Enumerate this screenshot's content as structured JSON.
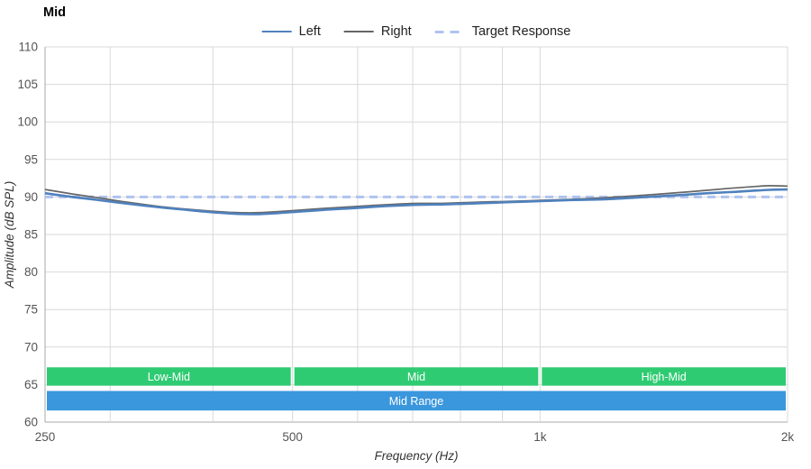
{
  "chart_data": {
    "type": "line",
    "title": "Mid",
    "xlabel": "Frequency (Hz)",
    "ylabel": "Amplitude (dB SPL)",
    "x_scale": "log",
    "xlim": [
      250,
      2000
    ],
    "ylim": [
      60,
      110
    ],
    "x_ticks": [
      {
        "value": 250,
        "label": "250"
      },
      {
        "value": 500,
        "label": "500"
      },
      {
        "value": 1000,
        "label": "1k"
      },
      {
        "value": 2000,
        "label": "2k"
      }
    ],
    "x_gridlines_minor": [
      300,
      400,
      500,
      600,
      700,
      800,
      900,
      1000
    ],
    "y_ticks": [
      {
        "value": 110,
        "label": "110"
      },
      {
        "value": 105,
        "label": "105"
      },
      {
        "value": 100,
        "label": "100"
      },
      {
        "value": 95,
        "label": "95"
      },
      {
        "value": 90,
        "label": "90"
      },
      {
        "value": 85,
        "label": "85"
      },
      {
        "value": 80,
        "label": "80"
      },
      {
        "value": 75,
        "label": "75"
      },
      {
        "value": 70,
        "label": "70"
      },
      {
        "value": 65,
        "label": "65"
      },
      {
        "value": 60,
        "label": "60"
      }
    ],
    "series": [
      {
        "name": "Left",
        "color": "#4f81bd",
        "width": 2.6,
        "dash": null,
        "points": [
          [
            250,
            90.5
          ],
          [
            270,
            90.0
          ],
          [
            290,
            89.6
          ],
          [
            310,
            89.2
          ],
          [
            330,
            88.85
          ],
          [
            350,
            88.55
          ],
          [
            370,
            88.3
          ],
          [
            395,
            88.0
          ],
          [
            420,
            87.8
          ],
          [
            450,
            87.7
          ],
          [
            480,
            87.85
          ],
          [
            510,
            88.05
          ],
          [
            550,
            88.3
          ],
          [
            590,
            88.5
          ],
          [
            630,
            88.7
          ],
          [
            670,
            88.85
          ],
          [
            710,
            88.95
          ],
          [
            760,
            89.0
          ],
          [
            810,
            89.1
          ],
          [
            860,
            89.2
          ],
          [
            910,
            89.3
          ],
          [
            1000,
            89.45
          ],
          [
            1100,
            89.6
          ],
          [
            1200,
            89.7
          ],
          [
            1300,
            89.9
          ],
          [
            1400,
            90.1
          ],
          [
            1500,
            90.3
          ],
          [
            1600,
            90.5
          ],
          [
            1700,
            90.65
          ],
          [
            1800,
            90.8
          ],
          [
            1900,
            90.95
          ],
          [
            2000,
            91.0
          ]
        ]
      },
      {
        "name": "Right",
        "color": "#666666",
        "width": 1.7,
        "dash": null,
        "points": [
          [
            250,
            91.0
          ],
          [
            270,
            90.4
          ],
          [
            290,
            89.9
          ],
          [
            310,
            89.4
          ],
          [
            330,
            89.0
          ],
          [
            350,
            88.65
          ],
          [
            370,
            88.4
          ],
          [
            395,
            88.15
          ],
          [
            420,
            87.95
          ],
          [
            450,
            87.9
          ],
          [
            480,
            88.05
          ],
          [
            510,
            88.25
          ],
          [
            550,
            88.5
          ],
          [
            590,
            88.7
          ],
          [
            630,
            88.9
          ],
          [
            670,
            89.05
          ],
          [
            710,
            89.15
          ],
          [
            760,
            89.15
          ],
          [
            810,
            89.25
          ],
          [
            860,
            89.35
          ],
          [
            910,
            89.4
          ],
          [
            1000,
            89.55
          ],
          [
            1100,
            89.7
          ],
          [
            1200,
            89.9
          ],
          [
            1300,
            90.15
          ],
          [
            1400,
            90.4
          ],
          [
            1500,
            90.65
          ],
          [
            1600,
            90.9
          ],
          [
            1700,
            91.15
          ],
          [
            1800,
            91.35
          ],
          [
            1900,
            91.5
          ],
          [
            2000,
            91.45
          ]
        ]
      },
      {
        "name": "Target Response",
        "color": "#aec3f0",
        "width": 3,
        "dash": "9 6",
        "points": [
          [
            250,
            90
          ],
          [
            2000,
            90
          ]
        ]
      }
    ],
    "bands": [
      {
        "label": "Low-Mid",
        "f0": 250,
        "f1": 500,
        "db_top": 67.3,
        "db_bottom": 64.85,
        "color": "#2fcb72",
        "text_color": "#ffffff"
      },
      {
        "label": "Mid",
        "f0": 500,
        "f1": 1000,
        "db_top": 67.3,
        "db_bottom": 64.85,
        "color": "#2fcb72",
        "text_color": "#ffffff"
      },
      {
        "label": "High-Mid",
        "f0": 1000,
        "f1": 2000,
        "db_top": 67.3,
        "db_bottom": 64.85,
        "color": "#2fcb72",
        "text_color": "#ffffff"
      },
      {
        "label": "Mid Range",
        "f0": 250,
        "f1": 2000,
        "db_top": 64.15,
        "db_bottom": 61.55,
        "color": "#3a97dd",
        "text_color": "#ffffff"
      }
    ],
    "colors": {
      "grid": "#d9d9d9",
      "axis": "#a8a8a8",
      "tick_text": "#545454",
      "axis_title": "#333333",
      "title": "#000000"
    },
    "legend_position": "top-center",
    "grid": "on"
  }
}
